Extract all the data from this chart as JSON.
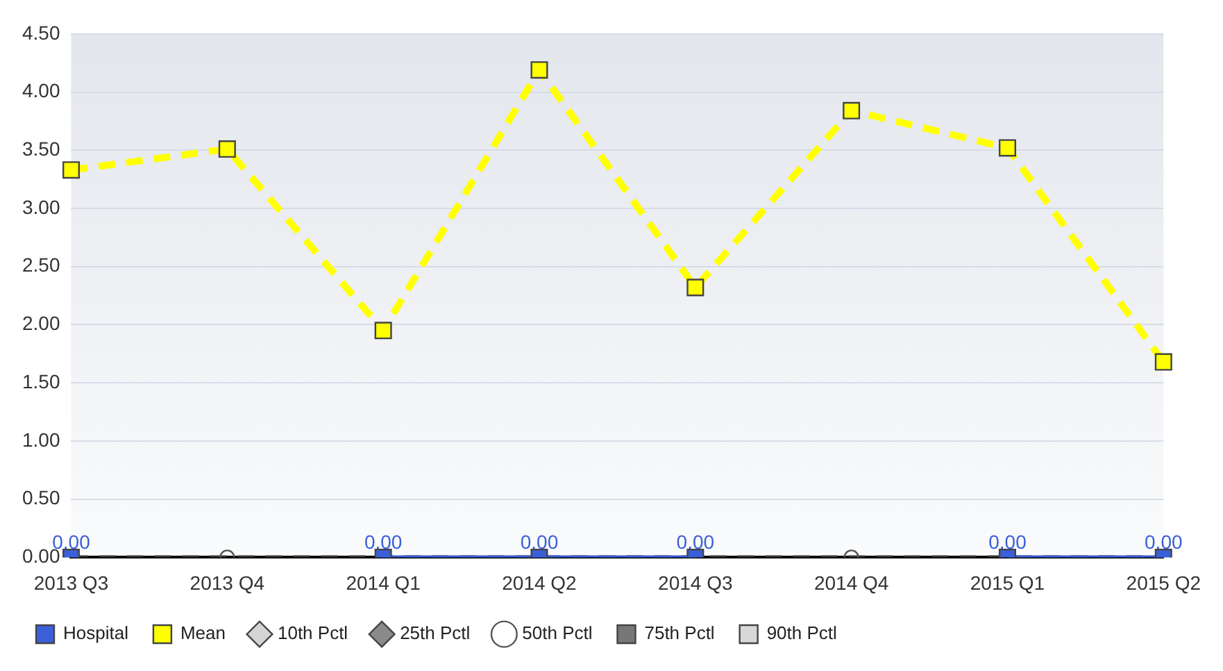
{
  "chart_data": {
    "type": "line",
    "categories": [
      "2013 Q3",
      "2013 Q4",
      "2014 Q1",
      "2014 Q2",
      "2014 Q3",
      "2014 Q4",
      "2015 Q1",
      "2015 Q2"
    ],
    "ylim": [
      0,
      4.5
    ],
    "yticks": [
      {
        "value": 0,
        "label": "0.00"
      },
      {
        "value": 0.5,
        "label": "0.50"
      },
      {
        "value": 1,
        "label": "1.00"
      },
      {
        "value": 1.5,
        "label": "1.50"
      },
      {
        "value": 2,
        "label": "2.00"
      },
      {
        "value": 2.5,
        "label": "2.50"
      },
      {
        "value": 3,
        "label": "3.00"
      },
      {
        "value": 3.5,
        "label": "3.50"
      },
      {
        "value": 4,
        "label": "4.00"
      },
      {
        "value": 4.5,
        "label": "4.50"
      }
    ],
    "grid": "y",
    "legend": "bottom",
    "series": [
      {
        "name": "Hospital",
        "color": "#3a5fd8",
        "marker": "square",
        "line_style": "solid",
        "values": [
          0,
          null,
          0,
          0,
          0,
          null,
          0,
          0
        ],
        "value_labels": [
          "0.00",
          null,
          "0.00",
          "0.00",
          "0.00",
          null,
          "0.00",
          "0.00"
        ]
      },
      {
        "name": "Mean",
        "color": "#ffff00",
        "marker": "square",
        "line_style": "dashed",
        "values": [
          3.33,
          3.51,
          1.95,
          4.19,
          2.32,
          3.84,
          3.52,
          1.68
        ]
      },
      {
        "name": "10th Pctl",
        "color": "#d4d4d4",
        "marker": "diamond",
        "line_style": "dotted",
        "values": [
          null,
          null,
          null,
          null,
          null,
          null,
          null,
          null
        ]
      },
      {
        "name": "25th Pctl",
        "color": "#8a8a8a",
        "marker": "diamond",
        "line_style": "dotted",
        "values": [
          null,
          null,
          null,
          null,
          null,
          null,
          null,
          null
        ]
      },
      {
        "name": "50th Pctl",
        "color": "#333333",
        "marker": "circle",
        "line_style": "dashed",
        "values": [
          0,
          0,
          0,
          0,
          0,
          0,
          0,
          0
        ]
      },
      {
        "name": "75th Pctl",
        "color": "#777777",
        "marker": "square",
        "line_style": "dotted",
        "values": [
          null,
          null,
          null,
          null,
          null,
          null,
          null,
          null
        ]
      },
      {
        "name": "90th Pctl",
        "color": "#d8d8d8",
        "marker": "square",
        "line_style": "dotted",
        "values": [
          null,
          null,
          null,
          null,
          null,
          null,
          null,
          null
        ]
      }
    ]
  }
}
